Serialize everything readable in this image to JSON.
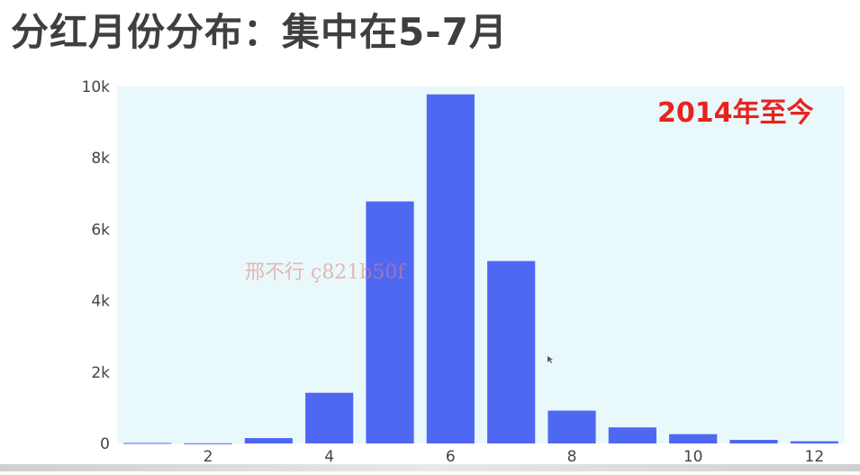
{
  "slide": {
    "title": "分红月份分布：集中在5-7月",
    "annotation": "2014年至今",
    "watermark": "邢不行 ç821b50f"
  },
  "colors": {
    "plot_bg": "#e9f9fb",
    "bar": "#4f68f2",
    "annotation": "#e8231f",
    "title": "#3f3f3f"
  },
  "chart_data": {
    "type": "bar",
    "x": [
      1,
      2,
      3,
      4,
      5,
      6,
      7,
      8,
      9,
      10,
      11,
      12
    ],
    "values": [
      15,
      5,
      150,
      1420,
      6780,
      9780,
      5110,
      920,
      450,
      260,
      100,
      60
    ],
    "title": "",
    "xlabel": "",
    "ylabel": "",
    "ylim": [
      0,
      10000
    ],
    "xlim": [
      0.5,
      12.5
    ],
    "yticks": [
      0,
      2000,
      4000,
      6000,
      8000,
      10000
    ],
    "ytick_labels": [
      "0",
      "2k",
      "4k",
      "6k",
      "8k",
      "10k"
    ],
    "xticks": [
      2,
      4,
      6,
      8,
      10,
      12
    ],
    "xtick_labels": [
      "2",
      "4",
      "6",
      "8",
      "10",
      "12"
    ],
    "grid": false,
    "legend": "none"
  }
}
